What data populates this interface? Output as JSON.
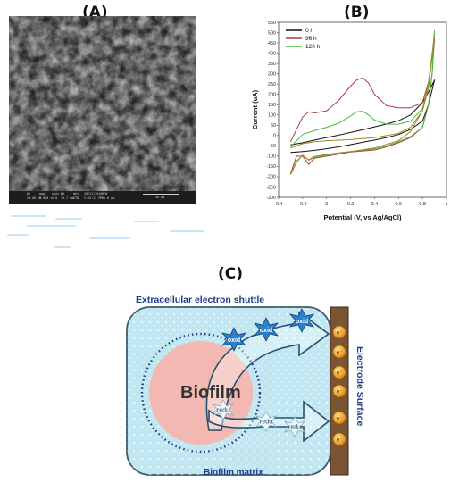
{
  "panels": {
    "a": "(A)",
    "b": "(B)",
    "c": "(C)"
  },
  "sem_databar": {
    "headers": [
      "HV",
      "mag",
      "spot",
      "WD",
      "det",
      "10/21/2016",
      "HFW"
    ],
    "values": [
      "20.00 kV",
      "8 000 x",
      "5.0",
      "10.7 mm",
      "ETD",
      "2:55:22 PM",
      "51.8 µm"
    ],
    "scale_label": "30 µm"
  },
  "chart_data": {
    "type": "line",
    "xlabel": "Potential (V, vs Ag/AgCl)",
    "ylabel": "Current (uA)",
    "xlim": [
      -0.4,
      1.0
    ],
    "ylim": [
      -300,
      550
    ],
    "xticks": [
      -0.4,
      -0.2,
      0.0,
      0.2,
      0.4,
      0.6,
      0.8,
      1.0
    ],
    "yticks": [
      -300,
      -250,
      -200,
      -150,
      -100,
      -50,
      0,
      50,
      100,
      150,
      200,
      250,
      300,
      350,
      400,
      450,
      500,
      550
    ],
    "legend_position": "top-left",
    "series": [
      {
        "name": "0 h",
        "color": "#111111",
        "x": [
          -0.3,
          -0.2,
          -0.1,
          0.0,
          0.1,
          0.2,
          0.3,
          0.4,
          0.5,
          0.6,
          0.7,
          0.8,
          0.85,
          0.9,
          0.85,
          0.8,
          0.7,
          0.6,
          0.5,
          0.4,
          0.3,
          0.2,
          0.1,
          0.0,
          -0.1,
          -0.2,
          -0.3
        ],
        "y": [
          -45,
          -35,
          -22,
          -10,
          2,
          15,
          28,
          42,
          56,
          72,
          100,
          160,
          210,
          270,
          150,
          70,
          30,
          5,
          -10,
          -22,
          -33,
          -44,
          -55,
          -64,
          -72,
          -78,
          -82
        ]
      },
      {
        "name": "96 h",
        "color": "#b23a3a",
        "x": [
          -0.3,
          -0.25,
          -0.2,
          -0.15,
          -0.1,
          0.0,
          0.1,
          0.2,
          0.25,
          0.3,
          0.35,
          0.4,
          0.5,
          0.6,
          0.7,
          0.8,
          0.85,
          0.88,
          0.9,
          0.88,
          0.85,
          0.8,
          0.7,
          0.6,
          0.5,
          0.4,
          0.3,
          0.2,
          0.1,
          0.0,
          -0.1,
          -0.15,
          -0.2,
          -0.25,
          -0.3
        ],
        "y": [
          -30,
          30,
          90,
          115,
          110,
          120,
          170,
          240,
          270,
          280,
          255,
          200,
          145,
          135,
          135,
          160,
          260,
          380,
          470,
          300,
          150,
          40,
          -10,
          -35,
          -55,
          -70,
          -75,
          -80,
          -90,
          -100,
          -110,
          -140,
          -100,
          -100,
          -185
        ]
      },
      {
        "name": "120 h",
        "color": "#45b83d",
        "x": [
          -0.3,
          -0.2,
          -0.1,
          0.0,
          0.1,
          0.2,
          0.25,
          0.3,
          0.35,
          0.4,
          0.5,
          0.6,
          0.7,
          0.8,
          0.85,
          0.88,
          0.9,
          0.88,
          0.85,
          0.8,
          0.7,
          0.6,
          0.5,
          0.4,
          0.3,
          0.2,
          0.1,
          0.0,
          -0.1,
          -0.15,
          -0.2,
          -0.25,
          -0.3
        ],
        "y": [
          -55,
          5,
          25,
          40,
          60,
          95,
          115,
          118,
          100,
          75,
          55,
          55,
          70,
          130,
          250,
          380,
          510,
          300,
          150,
          40,
          -5,
          -30,
          -50,
          -65,
          -72,
          -78,
          -85,
          -95,
          -105,
          -120,
          -95,
          -130,
          -190
        ]
      },
      {
        "name": "",
        "color": "#9a8a2a",
        "x": [
          -0.3,
          -0.2,
          -0.1,
          0.0,
          0.2,
          0.4,
          0.6,
          0.7,
          0.8,
          0.85,
          0.9,
          0.85,
          0.8,
          0.7,
          0.6,
          0.4,
          0.2,
          0.0,
          -0.1,
          -0.15,
          -0.2,
          -0.25,
          -0.3
        ],
        "y": [
          -60,
          -40,
          -30,
          -25,
          -20,
          -10,
          10,
          40,
          120,
          230,
          490,
          260,
          120,
          20,
          -25,
          -60,
          -78,
          -92,
          -102,
          -118,
          -96,
          -125,
          -188
        ]
      }
    ]
  },
  "diagram": {
    "shuttle_label": "Extracellular electron shuttle",
    "biofilm_label": "Biofilm",
    "matrix_label": "Biofilm matrix",
    "electrode_label": "Electrode Surface",
    "oxid_label": "oxid",
    "redu_label": "redu",
    "electron_label": "e⁻",
    "colors": {
      "matrix": "#bfe6f1",
      "biofilm": "#f2b8b1",
      "oxid_burst": "#2c7fc9",
      "electrode": "#7a5533",
      "electron": "#f2a32a",
      "label_blue": "#1f3c8a"
    }
  }
}
